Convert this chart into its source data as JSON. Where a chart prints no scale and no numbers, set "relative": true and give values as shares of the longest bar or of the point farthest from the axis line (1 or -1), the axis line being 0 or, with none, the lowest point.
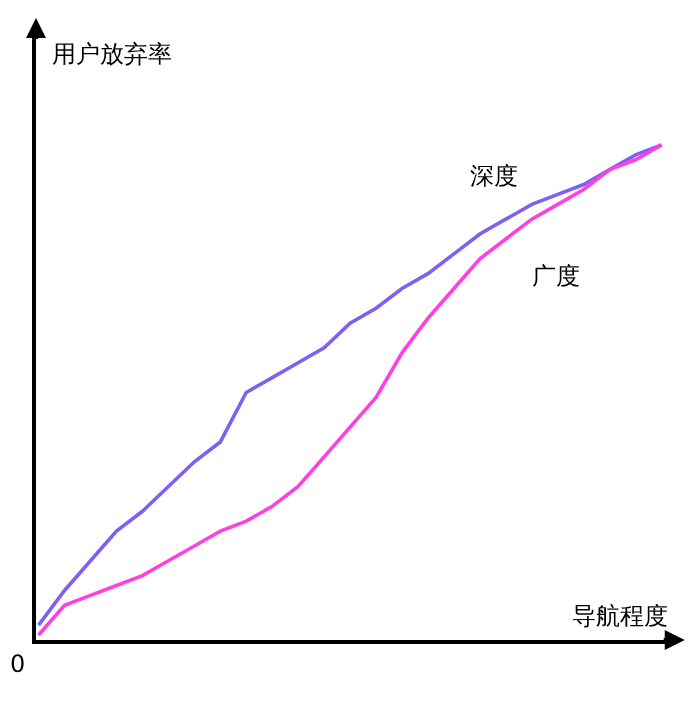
{
  "chart_data": {
    "type": "line",
    "relative": true,
    "xlabel": "导航程度",
    "ylabel": "用户放弃率",
    "annotations": [
      "0"
    ],
    "legend": false,
    "marker": "none",
    "line_style": "solid",
    "categories": [
      null,
      null,
      null,
      null,
      null,
      null,
      null,
      null,
      null,
      null,
      null,
      null,
      null,
      null,
      null,
      null,
      null,
      null,
      null,
      null,
      null,
      null,
      null,
      null,
      null
    ],
    "series": [
      {
        "name": "深度",
        "color": "#8060f0",
        "values": [
          0.03,
          0.1,
          0.16,
          0.22,
          0.26,
          0.31,
          0.36,
          0.4,
          0.5,
          0.53,
          0.56,
          0.59,
          0.64,
          0.67,
          0.71,
          0.74,
          0.78,
          0.82,
          0.85,
          0.88,
          0.9,
          0.92,
          0.95,
          0.98,
          1.0
        ]
      },
      {
        "name": "广度",
        "color": "#ff40e0",
        "values": [
          0.01,
          0.07,
          0.09,
          0.11,
          0.13,
          0.16,
          0.19,
          0.22,
          0.24,
          0.27,
          0.31,
          0.37,
          0.43,
          0.49,
          0.58,
          0.65,
          0.71,
          0.77,
          0.81,
          0.85,
          0.88,
          0.91,
          0.95,
          0.97,
          1.0
        ]
      }
    ]
  }
}
